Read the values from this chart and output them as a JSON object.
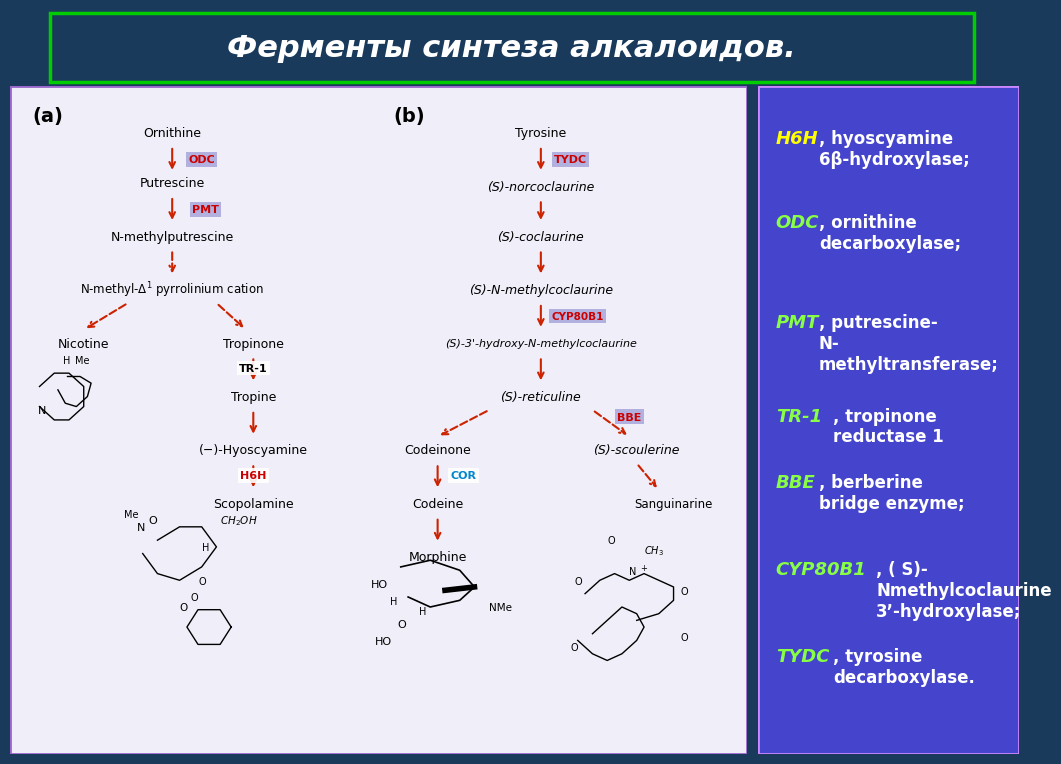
{
  "title": "Ферменты синтеза алкалоидов.",
  "bg_color": "#1a3a5c",
  "title_bg": "#1a3a5c",
  "title_text_color": "#ffffff",
  "title_border_color": "#00cc00",
  "main_panel_bg": "#f0eef8",
  "right_panel_bg": "#4444cc",
  "right_panel_border": "#cc88ff",
  "legend_items": [
    {
      "abbr": "H6H",
      "color": "#ffff00",
      "text": ", hyoscyamine\n6β-hydroxylase;"
    },
    {
      "abbr": "ODC",
      "color": "#88ff44",
      "text": ", ornithine\ndecarboxylase;"
    },
    {
      "abbr": "PMT",
      "color": "#88ff44",
      "text": ", putrescine-\nN-\nmethyltransferase;"
    },
    {
      "abbr": "TR-1",
      "color": "#88ff44",
      "text": ", tropinone\nreductase 1"
    },
    {
      "abbr": "BBE",
      "color": "#88ff44",
      "text": ", berberine\nbridge enzyme;"
    },
    {
      "abbr": "CYP80B1",
      "color": "#88ff44",
      "text": ", ( S)-\nNmethylcoclaurine\n3’-hydroxylase;"
    },
    {
      "abbr": "TYDC",
      "color": "#88ff44",
      "text": ", tyrosine\ndecarboxylase."
    }
  ],
  "label_bg_color": "#aaaadd",
  "label_text_color": "#cc0000",
  "arrow_color": "#cc2200",
  "panel_a_label": "(a)",
  "panel_b_label": "(b)"
}
